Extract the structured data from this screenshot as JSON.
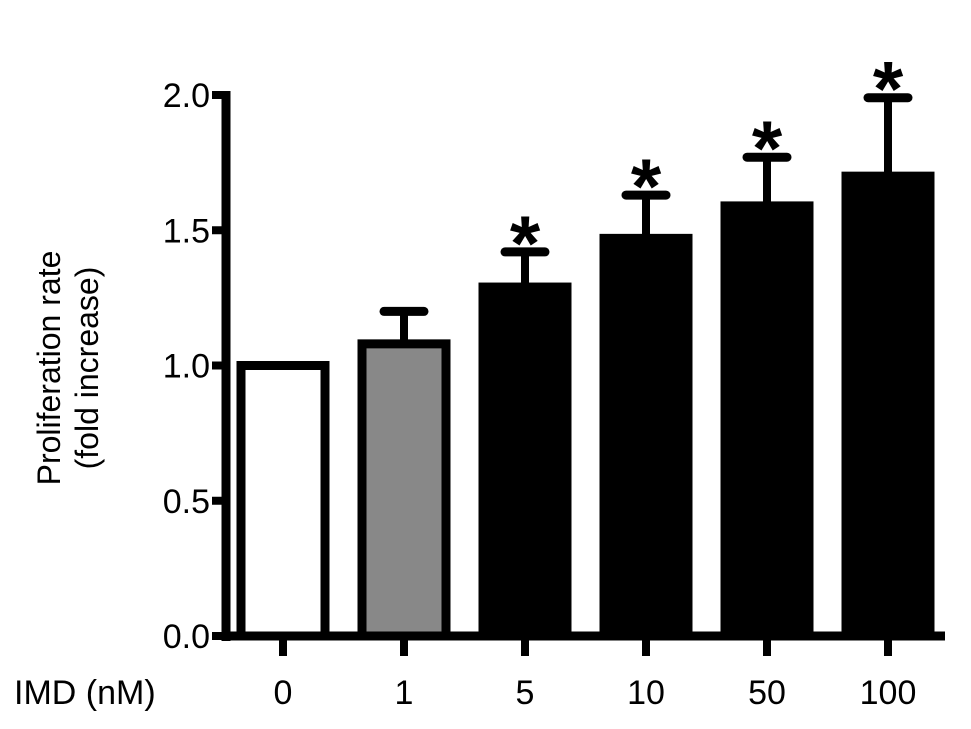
{
  "chart_data": {
    "type": "bar",
    "categories": [
      "0",
      "1",
      "5",
      "10",
      "50",
      "100"
    ],
    "values": [
      1.0,
      1.08,
      1.29,
      1.47,
      1.59,
      1.7
    ],
    "errors": [
      0.0,
      0.12,
      0.13,
      0.16,
      0.18,
      0.29
    ],
    "significance": [
      "",
      "",
      "*",
      "*",
      "*",
      "*"
    ],
    "bar_fills": [
      "#ffffff",
      "#888888",
      "#000000",
      "#000000",
      "#000000",
      "#000000"
    ],
    "ylim": [
      0.0,
      2.0
    ],
    "yticks": [
      "0.0",
      "0.5",
      "1.0",
      "1.5",
      "2.0"
    ],
    "ylabel_line1": "Proliferation rate",
    "ylabel_line2": "(fold increase)",
    "xlabel": "IMD (nM)",
    "grid": false,
    "legend": "none"
  }
}
